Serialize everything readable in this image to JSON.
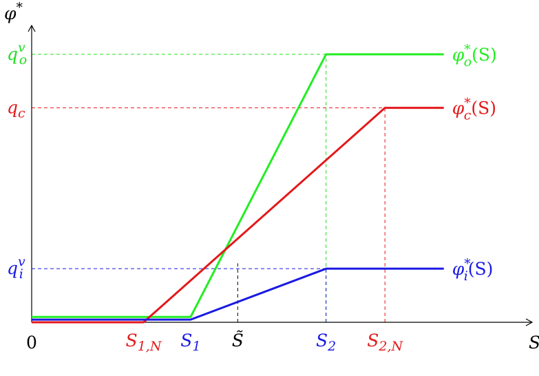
{
  "chart_data": {
    "type": "line",
    "title": "",
    "ylabel": "φ*",
    "xlabel": "S",
    "origin_label": "0",
    "xlim": [
      0,
      8.5
    ],
    "ylim": [
      0,
      6.0
    ],
    "x_ticks": [
      {
        "name": "s1n",
        "value": 1.9,
        "base": "S",
        "sub": "1,N",
        "color": "#e3191b"
      },
      {
        "name": "s1",
        "value": 2.7,
        "base": "S",
        "sub": "1",
        "color": "#1919e3"
      },
      {
        "name": "stilde",
        "value": 3.5,
        "base": "S̃",
        "sub": "",
        "color": "#000000"
      },
      {
        "name": "s2",
        "value": 5.0,
        "base": "S",
        "sub": "2",
        "color": "#1919e3"
      },
      {
        "name": "s2n",
        "value": 6.0,
        "base": "S",
        "sub": "2,N",
        "color": "#e3191b"
      }
    ],
    "y_ticks": [
      {
        "name": "qov",
        "value": 5.0,
        "base": "q",
        "sub": "o",
        "sup": "v",
        "color": "#22dd22"
      },
      {
        "name": "qc",
        "value": 4.0,
        "base": "q",
        "sub": "c",
        "sup": "",
        "color": "#e3191b"
      },
      {
        "name": "qiv",
        "value": 1.0,
        "base": "q",
        "sub": "i",
        "sup": "v",
        "color": "#1919e3"
      }
    ],
    "series": [
      {
        "name": "φ*_o(S)",
        "base": "φ",
        "sub": "o",
        "sup": "*",
        "arg": "(S)",
        "color": "#22ee22",
        "x": [
          0,
          2.7,
          5.0,
          7.0
        ],
        "y": [
          0.1,
          0.1,
          5.0,
          5.0
        ]
      },
      {
        "name": "φ*_c(S)",
        "base": "φ",
        "sub": "c",
        "sup": "*",
        "arg": "(S)",
        "color": "#e3191b",
        "x": [
          0,
          1.9,
          6.0,
          7.0
        ],
        "y": [
          0.0,
          0.0,
          4.0,
          4.0
        ]
      },
      {
        "name": "φ*_i(S)",
        "base": "φ",
        "sub": "i",
        "sup": "*",
        "arg": "(S)",
        "color": "#1919e3",
        "x": [
          0,
          2.7,
          5.0,
          7.0
        ],
        "y": [
          0.05,
          0.05,
          1.0,
          1.0
        ]
      }
    ],
    "guides": [
      {
        "name": "guide-h-qov",
        "from": [
          0,
          5.0
        ],
        "to": [
          5.0,
          5.0
        ],
        "color": "#22dd22"
      },
      {
        "name": "guide-h-qc",
        "from": [
          0,
          4.0
        ],
        "to": [
          6.0,
          4.0
        ],
        "color": "#e3191b"
      },
      {
        "name": "guide-h-qiv",
        "from": [
          0,
          1.0
        ],
        "to": [
          5.0,
          1.0
        ],
        "color": "#1919e3"
      },
      {
        "name": "guide-v-s2-green",
        "from": [
          5.0,
          0
        ],
        "to": [
          5.0,
          5.0
        ],
        "color": "#22dd22"
      },
      {
        "name": "guide-v-s2-blue",
        "from": [
          5.0,
          0
        ],
        "to": [
          5.0,
          1.0
        ],
        "color": "#1919e3"
      },
      {
        "name": "guide-v-s2n",
        "from": [
          6.0,
          0
        ],
        "to": [
          6.0,
          4.0
        ],
        "color": "#e3191b"
      },
      {
        "name": "guide-v-stilde",
        "from": [
          3.5,
          0
        ],
        "to": [
          3.5,
          1.1
        ],
        "color": "#000000"
      }
    ],
    "grid": false,
    "legend": "inline-right"
  }
}
